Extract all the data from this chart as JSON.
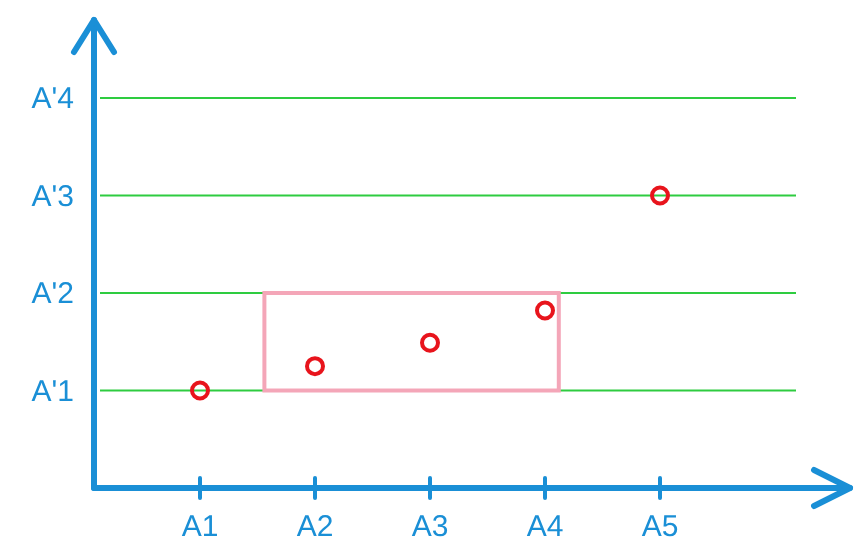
{
  "chart_data": {
    "type": "scatter",
    "categories": [
      "A1",
      "A2",
      "A3",
      "A4",
      "A5"
    ],
    "ylim": [
      0,
      4.8
    ],
    "yticks": [
      {
        "value": 1,
        "label": "A'1"
      },
      {
        "value": 2,
        "label": "A'2"
      },
      {
        "value": 3,
        "label": "A'3"
      },
      {
        "value": 4,
        "label": "A'4"
      }
    ],
    "series": [
      {
        "color": "#e8141c",
        "values": [
          1,
          1.25,
          1.49,
          1.82,
          3
        ]
      }
    ],
    "grid": "y",
    "marker": "circle"
  }
}
